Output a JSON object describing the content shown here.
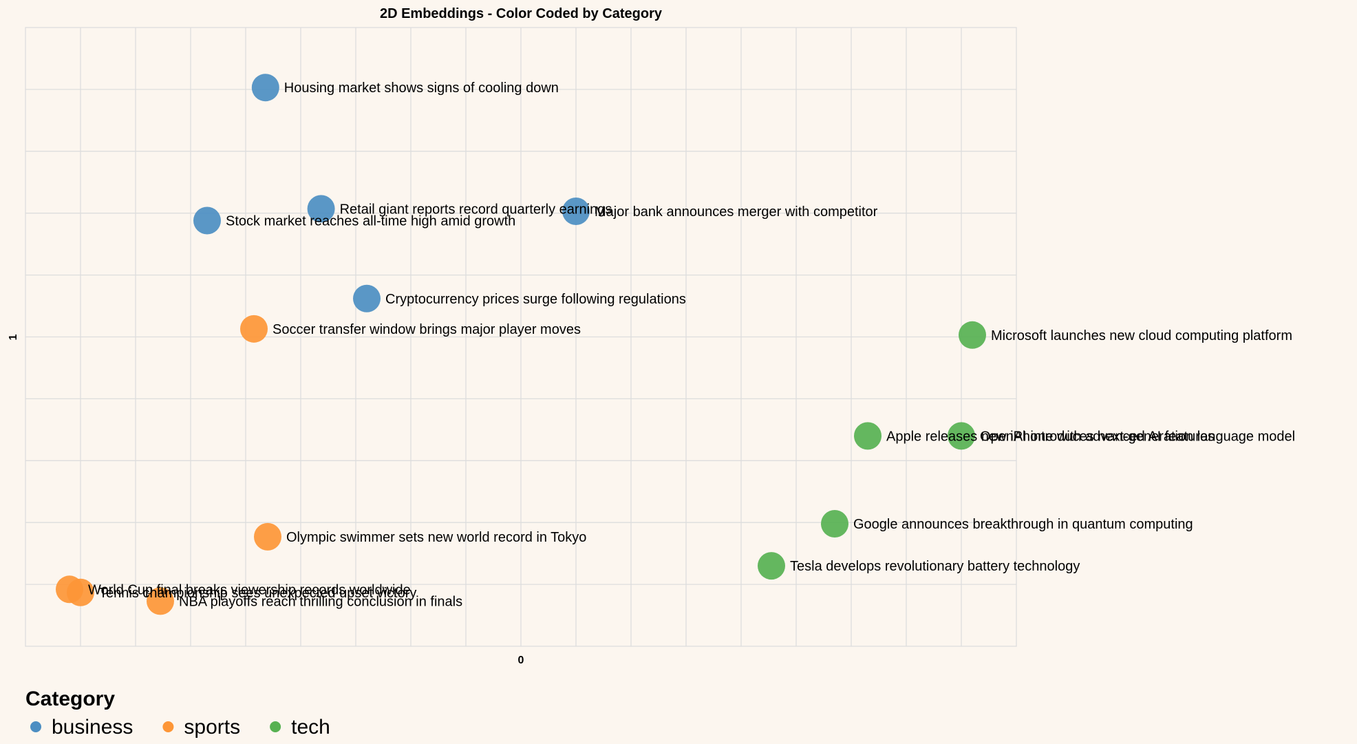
{
  "chart_data": {
    "type": "scatter",
    "title": "2D Embeddings - Color Coded by Category",
    "xlabel": "0",
    "ylabel": "1",
    "xlim": [
      -9.0,
      9.0
    ],
    "ylim": [
      -5.0,
      5.0
    ],
    "grid": true,
    "legend": {
      "title": "Category",
      "position": "bottom-left",
      "entries": [
        {
          "name": "business",
          "color": "#4c8ec2"
        },
        {
          "name": "sports",
          "color": "#fd9637"
        },
        {
          "name": "tech",
          "color": "#57b152"
        }
      ]
    },
    "series": [
      {
        "name": "business",
        "color": "#4c8ec2",
        "points": [
          {
            "x": -4.64,
            "y": 4.03,
            "label": "Housing market shows signs of cooling down"
          },
          {
            "x": -3.63,
            "y": 2.07,
            "label": "Retail giant reports record quarterly earnings"
          },
          {
            "x": 1.0,
            "y": 2.03,
            "label": "Major bank announces merger with competitor"
          },
          {
            "x": -5.7,
            "y": 1.88,
            "label": "Stock market reaches all-time high amid growth"
          },
          {
            "x": -2.8,
            "y": 0.62,
            "label": "Cryptocurrency prices surge following regulations"
          }
        ]
      },
      {
        "name": "sports",
        "color": "#fd9637",
        "points": [
          {
            "x": -4.85,
            "y": 0.13,
            "label": "Soccer transfer window brings major player moves"
          },
          {
            "x": -4.6,
            "y": -3.23,
            "label": "Olympic swimmer sets new world record in Tokyo"
          },
          {
            "x": -8.2,
            "y": -4.08,
            "label": "World Cup final breaks viewership records worldwide"
          },
          {
            "x": -8.0,
            "y": -4.13,
            "label": "Tennis championship sees unexpected upset victory"
          },
          {
            "x": -6.55,
            "y": -4.27,
            "label": "NBA playoffs reach thrilling conclusion in finals"
          }
        ]
      },
      {
        "name": "tech",
        "color": "#57b152",
        "points": [
          {
            "x": 8.2,
            "y": 0.03,
            "label": "Microsoft launches new cloud computing platform"
          },
          {
            "x": 6.3,
            "y": -1.6,
            "label": "Apple releases new iPhone with advanced AI features"
          },
          {
            "x": 8.0,
            "y": -1.6,
            "label": "OpenAI introduces next-generation language model"
          },
          {
            "x": 5.7,
            "y": -3.02,
            "label": "Google announces breakthrough in quantum computing"
          },
          {
            "x": 4.55,
            "y": -3.7,
            "label": "Tesla develops revolutionary battery technology"
          }
        ]
      }
    ]
  }
}
